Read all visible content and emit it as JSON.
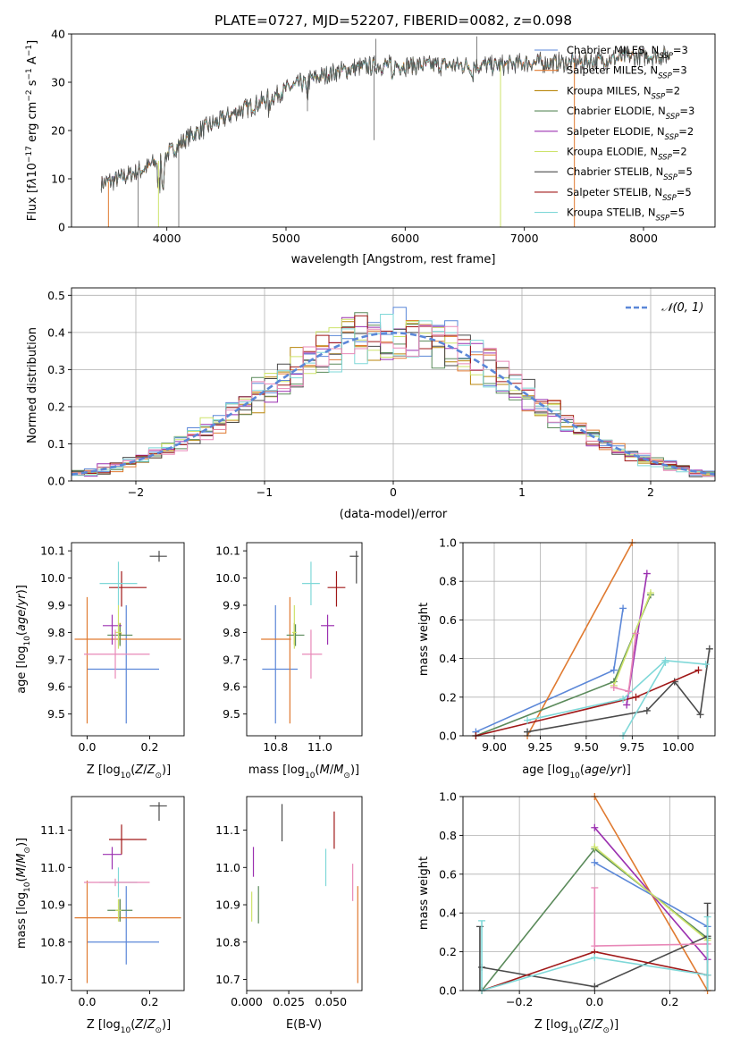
{
  "title": "PLATE=0727, MJD=52207, FIBERID=0082, z=0.098",
  "colors": {
    "chabrier_miles": "#5b87d8",
    "salpeter_miles": "#e07a30",
    "kroupa_miles": "#b8860b",
    "chabrier_elodie": "#5a8a5a",
    "salpeter_elodie": "#9b30b0",
    "kroupa_elodie": "#cde36a",
    "chabrier_stelib": "#4a4a4a",
    "salpeter_stelib": "#a01818",
    "kroupa_stelib": "#7fd8d8",
    "pink": "#e888b8",
    "normal_curve": "#5b87d8"
  },
  "legend_models": [
    "Chabrier MILES, N_SSP=3",
    "Salpeter MILES, N_SSP=3",
    "Kroupa MILES, N_SSP=2",
    "Chabrier ELODIE, N_SSP=3",
    "Salpeter ELODIE, N_SSP=2",
    "Kroupa ELODIE, N_SSP=2",
    "Chabrier STELIB, N_SSP=5",
    "Salpeter STELIB, N_SSP=5",
    "Kroupa STELIB, N_SSP=5"
  ],
  "chart_data": [
    {
      "type": "line",
      "panel": "spectrum",
      "title": "PLATE=0727, MJD=52207, FIBERID=0082, z=0.098",
      "xlabel": "wavelength [Angstrom, rest frame]",
      "ylabel": "Flux [f_λ 10^-17 erg cm^-2 s^-1 A^-1]",
      "xlim": [
        3200,
        8600
      ],
      "ylim": [
        0,
        40
      ],
      "xticks": [
        4000,
        5000,
        6000,
        7000,
        8000
      ],
      "yticks": [
        0,
        10,
        20,
        30,
        40
      ],
      "continuum": {
        "x": [
          3450,
          3600,
          3800,
          3950,
          4050,
          4200,
          4400,
          4600,
          4800,
          5000,
          5200,
          5400,
          5600,
          5800,
          6000,
          6200,
          6400,
          6600,
          6800,
          7000,
          7200,
          7400,
          7600,
          7800,
          8000,
          8200
        ],
        "y": [
          9,
          10,
          12,
          14,
          16,
          19,
          21.5,
          24,
          26,
          28.5,
          30.5,
          32,
          33,
          33.5,
          33.5,
          33.5,
          33.5,
          33.5,
          33.5,
          34,
          34,
          34,
          34.5,
          35,
          35.5,
          35.5
        ]
      },
      "dropouts": [
        {
          "series": "Salpeter MILES",
          "x": 3510
        },
        {
          "series": "Kroupa ELODIE",
          "x": 3930
        },
        {
          "series": "Kroupa ELODIE",
          "x": 6800
        },
        {
          "series": "Salpeter MILES",
          "x": 7420
        }
      ]
    },
    {
      "type": "line",
      "panel": "residual_histogram",
      "xlabel": "(data-model)/error",
      "ylabel": "Normed distribution",
      "xlim": [
        -2.5,
        2.5
      ],
      "ylim": [
        0,
        0.52
      ],
      "xticks": [
        -2,
        -1,
        0,
        1,
        2
      ],
      "yticks": [
        0.0,
        0.1,
        0.2,
        0.3,
        0.4,
        0.5
      ],
      "legend": "𝒩(0, 1)",
      "bin_width": 0.1
    },
    {
      "type": "scatter",
      "panel": "age_vs_Z",
      "xlabel": "Z [log10(Z/Z⊙)]",
      "ylabel": "age [log10(age/yr)]",
      "xlim": [
        -0.05,
        0.31
      ],
      "ylim": [
        9.42,
        10.13
      ],
      "xticks": [
        0.0,
        0.2
      ],
      "yticks": [
        9.5,
        9.6,
        9.7,
        9.8,
        9.9,
        10.0,
        10.1
      ],
      "points": [
        {
          "series": "Chabrier MILES",
          "x": 0.125,
          "xerr": [
            0.125,
            0.105
          ],
          "y": 9.665,
          "yerr": [
            0.2,
            0.235
          ]
        },
        {
          "series": "Salpeter MILES",
          "x": 0.0,
          "xerr": [
            0.04,
            0.3
          ],
          "y": 9.775,
          "yerr": [
            0.31,
            0.155
          ]
        },
        {
          "series": "Kroupa MILES",
          "x": 0.105,
          "xerr": [
            0.005,
            0.005
          ],
          "y": 9.795,
          "yerr": [
            0.04,
            0.04
          ]
        },
        {
          "series": "Chabrier ELODIE",
          "x": 0.105,
          "xerr": [
            0.04,
            0.04
          ],
          "y": 9.79,
          "yerr": [
            0.04,
            0.04
          ]
        },
        {
          "series": "Salpeter ELODIE",
          "x": 0.08,
          "xerr": [
            0.03,
            0.03
          ],
          "y": 9.825,
          "yerr": [
            0.07,
            0.04
          ]
        },
        {
          "series": "Kroupa ELODIE",
          "x": 0.1,
          "xerr": [
            0.01,
            0.01
          ],
          "y": 9.8,
          "yerr": [
            0.06,
            0.1
          ]
        },
        {
          "series": "Chabrier STELIB",
          "x": 0.23,
          "xerr": [
            0.03,
            0.025
          ],
          "y": 10.08,
          "yerr": [
            0.02,
            0.02
          ]
        },
        {
          "series": "Salpeter STELIB",
          "x": 0.11,
          "xerr": [
            0.04,
            0.08
          ],
          "y": 9.965,
          "yerr": [
            0.07,
            0.06
          ]
        },
        {
          "series": "Kroupa STELIB",
          "x": 0.1,
          "xerr": [
            0.06,
            0.06
          ],
          "y": 9.98,
          "yerr": [
            0.08,
            0.08
          ]
        },
        {
          "series": "Pink",
          "x": 0.09,
          "xerr": [
            0.1,
            0.11
          ],
          "y": 9.72,
          "yerr": [
            0.09,
            0.09
          ]
        }
      ]
    },
    {
      "type": "scatter",
      "panel": "age_vs_mass",
      "xlabel": "mass [log10(M/M⊙)]",
      "ylabel": "",
      "xlim": [
        10.67,
        11.19
      ],
      "ylim": [
        9.42,
        10.13
      ],
      "xticks": [
        10.8,
        11.0
      ],
      "yticks": [
        9.5,
        9.6,
        9.7,
        9.8,
        9.9,
        10.0,
        10.1
      ],
      "points": [
        {
          "series": "Chabrier MILES",
          "x": 10.8,
          "xerr": [
            0.06,
            0.1
          ],
          "y": 9.665,
          "yerr": [
            0.2,
            0.235
          ]
        },
        {
          "series": "Salpeter MILES",
          "x": 10.865,
          "xerr": [
            0.13,
            0.005
          ],
          "y": 9.775,
          "yerr": [
            0.31,
            0.155
          ]
        },
        {
          "series": "Kroupa MILES",
          "x": 10.885,
          "xerr": [
            0.005,
            0.005
          ],
          "y": 9.795,
          "yerr": [
            0.04,
            0.04
          ]
        },
        {
          "series": "Chabrier ELODIE",
          "x": 10.89,
          "xerr": [
            0.04,
            0.04
          ],
          "y": 9.79,
          "yerr": [
            0.04,
            0.04
          ]
        },
        {
          "series": "Salpeter ELODIE",
          "x": 11.035,
          "xerr": [
            0.03,
            0.03
          ],
          "y": 9.825,
          "yerr": [
            0.07,
            0.04
          ]
        },
        {
          "series": "Kroupa ELODIE",
          "x": 10.885,
          "xerr": [
            0.01,
            0.01
          ],
          "y": 9.8,
          "yerr": [
            0.06,
            0.1
          ]
        },
        {
          "series": "Chabrier STELIB",
          "x": 11.165,
          "xerr": [
            0.03,
            0.01
          ],
          "y": 10.08,
          "yerr": [
            0.1,
            0.02
          ]
        },
        {
          "series": "Salpeter STELIB",
          "x": 11.075,
          "xerr": [
            0.04,
            0.04
          ],
          "y": 9.965,
          "yerr": [
            0.07,
            0.06
          ]
        },
        {
          "series": "Kroupa STELIB",
          "x": 10.96,
          "xerr": [
            0.04,
            0.04
          ],
          "y": 9.98,
          "yerr": [
            0.08,
            0.08
          ]
        },
        {
          "series": "Pink",
          "x": 10.96,
          "xerr": [
            0.04,
            0.05
          ],
          "y": 9.72,
          "yerr": [
            0.09,
            0.09
          ]
        }
      ]
    },
    {
      "type": "line",
      "panel": "weight_vs_age",
      "xlabel": "age [log10(age/yr)]",
      "ylabel": "mass weight",
      "xlim": [
        8.83,
        10.2
      ],
      "ylim": [
        0,
        1
      ],
      "xticks": [
        9.0,
        9.25,
        9.5,
        9.75,
        10.0
      ],
      "yticks": [
        0.0,
        0.2,
        0.4,
        0.6,
        0.8,
        1.0
      ],
      "series": [
        {
          "name": "Chabrier MILES",
          "x": [
            8.9,
            9.65,
            9.7
          ],
          "y": [
            0.02,
            0.34,
            0.66
          ]
        },
        {
          "name": "Salpeter MILES",
          "x": [
            9.18,
            9.75
          ],
          "y": [
            0.0,
            1.0
          ]
        },
        {
          "name": "Chabrier ELODIE",
          "x": [
            8.9,
            9.65,
            9.85
          ],
          "y": [
            0.0,
            0.28,
            0.73
          ]
        },
        {
          "name": "Salpeter ELODIE",
          "x": [
            9.72,
            9.83
          ],
          "y": [
            0.16,
            0.84
          ]
        },
        {
          "name": "Kroupa ELODIE",
          "x": [
            9.65,
            9.85
          ],
          "y": [
            0.26,
            0.74
          ]
        },
        {
          "name": "Chabrier STELIB",
          "x": [
            9.18,
            9.83,
            9.98,
            10.12,
            10.17
          ],
          "y": [
            0.02,
            0.13,
            0.28,
            0.11,
            0.45
          ]
        },
        {
          "name": "Salpeter STELIB",
          "x": [
            8.9,
            9.77,
            10.11
          ],
          "y": [
            0.0,
            0.2,
            0.34
          ]
        },
        {
          "name": "Kroupa STELIB",
          "x": [
            9.18,
            9.7,
            9.93,
            10.15
          ],
          "y": [
            0.08,
            0.19,
            0.39,
            0.37
          ]
        },
        {
          "name": "Pink",
          "x": [
            9.65,
            9.73,
            9.77
          ],
          "y": [
            0.25,
            0.23,
            0.53
          ]
        },
        {
          "name": "Cyan2",
          "x": [
            9.7,
            9.93
          ],
          "y": [
            0.0,
            0.38
          ]
        }
      ]
    },
    {
      "type": "scatter",
      "panel": "mass_vs_Z",
      "xlabel": "Z [log10(Z/Z⊙)]",
      "ylabel": "mass [log10(M/M⊙)]",
      "xlim": [
        -0.05,
        0.31
      ],
      "ylim": [
        10.67,
        11.19
      ],
      "xticks": [
        0.0,
        0.2
      ],
      "yticks": [
        10.7,
        10.8,
        10.9,
        11.0,
        11.1
      ],
      "points": [
        {
          "series": "Chabrier MILES",
          "x": 0.125,
          "xerr": [
            0.125,
            0.105
          ],
          "y": 10.8,
          "yerr": [
            0.06,
            0.15
          ]
        },
        {
          "series": "Salpeter MILES",
          "x": 0.0,
          "xerr": [
            0.04,
            0.3
          ],
          "y": 10.865,
          "yerr": [
            0.175,
            0.1
          ]
        },
        {
          "series": "Kroupa MILES",
          "x": 0.105,
          "xerr": [
            0.005,
            0.005
          ],
          "y": 10.885,
          "yerr": [
            0.03,
            0.03
          ]
        },
        {
          "series": "Chabrier ELODIE",
          "x": 0.105,
          "xerr": [
            0.04,
            0.04
          ],
          "y": 10.885,
          "yerr": [
            0.03,
            0.03
          ]
        },
        {
          "series": "Salpeter ELODIE",
          "x": 0.08,
          "xerr": [
            0.03,
            0.03
          ],
          "y": 11.035,
          "yerr": [
            0.04,
            0.02
          ]
        },
        {
          "series": "Kroupa ELODIE",
          "x": 0.1,
          "xerr": [
            0.01,
            0.01
          ],
          "y": 10.885,
          "yerr": [
            0.03,
            0.03
          ]
        },
        {
          "series": "Chabrier STELIB",
          "x": 0.23,
          "xerr": [
            0.03,
            0.025
          ],
          "y": 11.165,
          "yerr": [
            0.04,
            0.01
          ]
        },
        {
          "series": "Salpeter STELIB",
          "x": 0.11,
          "xerr": [
            0.04,
            0.08
          ],
          "y": 11.075,
          "yerr": [
            0.04,
            0.04
          ]
        },
        {
          "series": "Kroupa STELIB",
          "x": 0.1,
          "xerr": [
            0.06,
            0.06
          ],
          "y": 10.96,
          "yerr": [
            0.04,
            0.04
          ]
        },
        {
          "series": "Pink",
          "x": 0.09,
          "xerr": [
            0.1,
            0.11
          ],
          "y": 10.96,
          "yerr": [
            0.01,
            0.01
          ]
        }
      ]
    },
    {
      "type": "scatter",
      "panel": "mass_vs_ebv",
      "xlabel": "E(B-V)",
      "ylabel": "",
      "xlim": [
        0.0,
        0.0685
      ],
      "ylim": [
        10.67,
        11.19
      ],
      "xticks": [
        0.0,
        0.025,
        0.05
      ],
      "xticklabels": [
        "0.000",
        "0.025",
        "0.050"
      ],
      "yticks": [
        10.7,
        10.8,
        10.9,
        11.0,
        11.1
      ],
      "points": [
        {
          "series": "Salpeter ELODIE",
          "x": 0.004,
          "y": 11.015,
          "yerr": [
            0.04,
            0.04
          ]
        },
        {
          "series": "Kroupa ELODIE",
          "x": 0.003,
          "y": 10.895,
          "yerr": [
            0.04,
            0.04
          ]
        },
        {
          "series": "Chabrier ELODIE",
          "x": 0.007,
          "y": 10.9,
          "yerr": [
            0.05,
            0.05
          ]
        },
        {
          "series": "Chabrier STELIB",
          "x": 0.021,
          "y": 11.12,
          "yerr": [
            0.05,
            0.05
          ]
        },
        {
          "series": "Kroupa STELIB",
          "x": 0.047,
          "y": 11.0,
          "yerr": [
            0.05,
            0.05
          ]
        },
        {
          "series": "Salpeter STELIB",
          "x": 0.052,
          "y": 11.1,
          "yerr": [
            0.05,
            0.05
          ]
        },
        {
          "series": "Pink",
          "x": 0.063,
          "y": 10.96,
          "yerr": [
            0.05,
            0.05
          ]
        },
        {
          "series": "Salpeter MILES",
          "x": 0.066,
          "y": 10.82,
          "yerr": [
            0.13,
            0.13
          ]
        }
      ]
    },
    {
      "type": "line",
      "panel": "weight_vs_Z",
      "xlabel": "Z [log10(Z/Z⊙)]",
      "ylabel": "mass weight",
      "xlim": [
        -0.35,
        0.32
      ],
      "ylim": [
        0,
        1
      ],
      "xticks": [
        -0.2,
        0.0,
        0.2
      ],
      "yticks": [
        0.0,
        0.2,
        0.4,
        0.6,
        0.8,
        1.0
      ],
      "series": [
        {
          "name": "Chabrier MILES",
          "x": [
            0.0,
            0.3
          ],
          "y": [
            0.66,
            0.33
          ]
        },
        {
          "name": "Salpeter MILES",
          "x": [
            0.0,
            0.3
          ],
          "y": [
            1.0,
            0.0
          ]
        },
        {
          "name": "Chabrier ELODIE",
          "x": [
            -0.3,
            0.0,
            0.3
          ],
          "y": [
            0.0,
            0.73,
            0.27
          ]
        },
        {
          "name": "Salpeter ELODIE",
          "x": [
            0.0,
            0.3
          ],
          "y": [
            0.84,
            0.16
          ]
        },
        {
          "name": "Kroupa ELODIE",
          "x": [
            0.0,
            0.3
          ],
          "y": [
            0.74,
            0.26
          ]
        },
        {
          "name": "Chabrier STELIB",
          "x": [
            -0.3,
            0.0,
            0.3
          ],
          "y": [
            0.12,
            0.02,
            0.28
          ]
        },
        {
          "name": "Salpeter STELIB",
          "x": [
            -0.3,
            0.0,
            0.3
          ],
          "y": [
            0.0,
            0.2,
            0.08
          ]
        },
        {
          "name": "Kroupa STELIB",
          "x": [
            -0.3,
            0.0,
            0.3
          ],
          "y": [
            0.0,
            0.17,
            0.08
          ]
        },
        {
          "name": "Pink",
          "x": [
            0.0,
            0.3
          ],
          "y": [
            0.23,
            0.24
          ]
        }
      ],
      "vertical_markers": [
        {
          "series": "Chabrier STELIB",
          "x": -0.305,
          "y": [
            0.0,
            0.33
          ]
        },
        {
          "series": "Kroupa STELIB",
          "x": -0.3,
          "y": [
            0.0,
            0.36
          ]
        },
        {
          "series": "Pink",
          "x": 0.0,
          "y": [
            0.23,
            0.53
          ]
        },
        {
          "series": "Chabrier STELIB",
          "x": 0.3,
          "y": [
            0.0,
            0.45
          ]
        },
        {
          "series": "Kroupa STELIB",
          "x": 0.3,
          "y": [
            0.0,
            0.38
          ]
        }
      ]
    }
  ]
}
